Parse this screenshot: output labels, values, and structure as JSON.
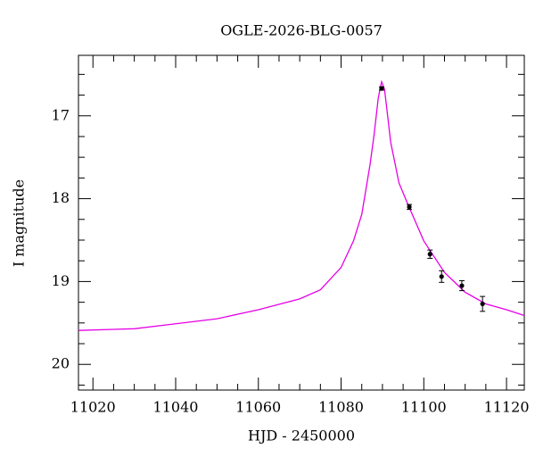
{
  "chart_data": {
    "type": "lightcurve",
    "title": "OGLE-2026-BLG-0057",
    "xlabel": "HJD - 2450000",
    "ylabel": "I magnitude",
    "xlim": [
      11016.5,
      11124.3
    ],
    "ylim": [
      16.27,
      20.31
    ],
    "y_inverted": true,
    "xticks": [
      11020,
      11040,
      11060,
      11080,
      11100,
      11120
    ],
    "xminorticks": [
      11025,
      11030,
      11035,
      11045,
      11050,
      11055,
      11065,
      11070,
      11075,
      11085,
      11090,
      11095,
      11105,
      11110,
      11115
    ],
    "yticks": [
      17,
      18,
      19,
      20
    ],
    "yminorticks": [
      16.5,
      16.75,
      17.25,
      17.5,
      17.75,
      18.25,
      18.5,
      18.75,
      19.25,
      19.5,
      19.75,
      20.25
    ],
    "series": [
      {
        "type": "line",
        "color": "#e600e6",
        "x": [
          11016.5,
          11030,
          11040,
          11050,
          11060,
          11070,
          11075,
          11080,
          11083,
          11085,
          11087,
          11088,
          11089,
          11089.8,
          11090.5,
          11091,
          11092,
          11094,
          11096,
          11100,
          11105,
          11110,
          11115,
          11120,
          11124.3
        ],
        "values": [
          19.59,
          19.57,
          19.51,
          19.45,
          19.34,
          19.21,
          19.1,
          18.83,
          18.51,
          18.19,
          17.59,
          17.22,
          16.78,
          16.59,
          16.68,
          16.89,
          17.32,
          17.81,
          18.05,
          18.51,
          18.89,
          19.13,
          19.27,
          19.34,
          19.41
        ]
      },
      {
        "type": "errorbar",
        "color": "#000000",
        "x": [
          11089.8,
          11096.5,
          11101.5,
          11104.3,
          11109.2,
          11114.2
        ],
        "values": [
          16.67,
          18.1,
          18.67,
          18.94,
          19.05,
          19.27
        ],
        "errors": [
          0.02,
          0.03,
          0.05,
          0.07,
          0.06,
          0.09
        ]
      }
    ]
  }
}
